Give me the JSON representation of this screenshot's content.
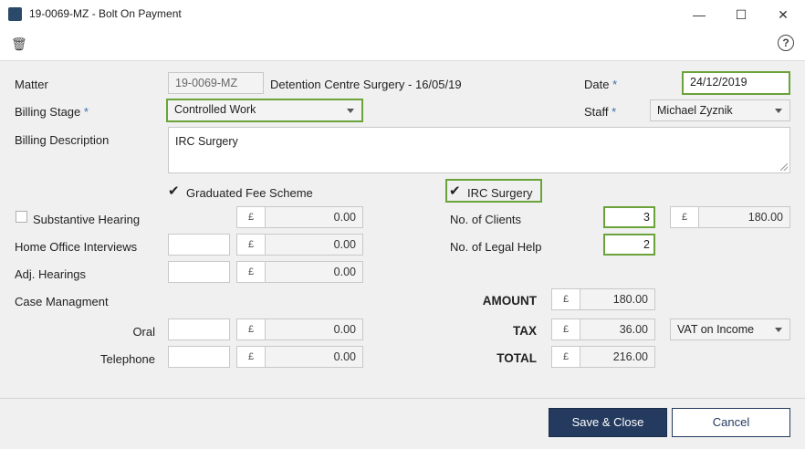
{
  "window": {
    "title": "19-0069-MZ - Bolt On Payment",
    "minimize": "—",
    "maximize": "☐",
    "close": "✕"
  },
  "toolbar": {
    "delete_icon": "🗑",
    "help_icon": "?"
  },
  "matter": {
    "label": "Matter",
    "code": "19-0069-MZ",
    "description": "Detention Centre Surgery - 16/05/19"
  },
  "date": {
    "label": "Date",
    "required": "*",
    "value": "24/12/2019"
  },
  "billing_stage": {
    "label": "Billing Stage",
    "required": "*",
    "value": "Controlled Work"
  },
  "staff": {
    "label": "Staff",
    "required": "*",
    "value": "Michael Zyznik"
  },
  "billing_description": {
    "label": "Billing Description",
    "value": "IRC Surgery"
  },
  "graduated_fee": {
    "label": "Graduated Fee Scheme",
    "checked": true
  },
  "irc_surgery": {
    "label": "IRC Surgery",
    "checked": true
  },
  "currency": "£",
  "substantive_hearing": {
    "label": "Substantive Hearing",
    "checked": false,
    "amount": "0.00"
  },
  "home_office": {
    "label": "Home Office Interviews",
    "count": "",
    "amount": "0.00"
  },
  "adj_hearings": {
    "label": "Adj. Hearings",
    "count": "",
    "amount": "0.00"
  },
  "case_management": {
    "label": "Case Managment"
  },
  "oral": {
    "label": "Oral",
    "count": "",
    "amount": "0.00"
  },
  "telephone": {
    "label": "Telephone",
    "count": "",
    "amount": "0.00"
  },
  "no_clients": {
    "label": "No. of Clients",
    "value": "3",
    "amount": "180.00"
  },
  "no_legal_help": {
    "label": "No. of Legal Help",
    "value": "2"
  },
  "totals": {
    "amount_label": "AMOUNT",
    "amount": "180.00",
    "tax_label": "TAX",
    "tax": "36.00",
    "total_label": "TOTAL",
    "total": "216.00",
    "vat_option": "VAT on Income"
  },
  "buttons": {
    "save": "Save & Close",
    "cancel": "Cancel"
  },
  "colors": {
    "accent_green": "#6aa33a",
    "primary_navy": "#243a5e"
  }
}
